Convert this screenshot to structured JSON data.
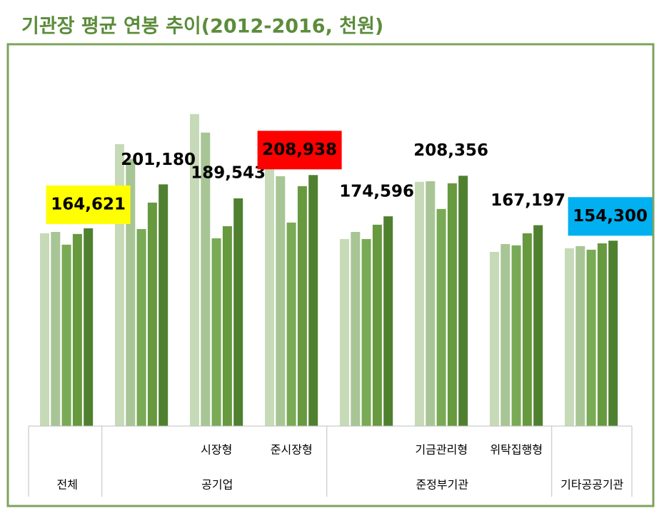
{
  "chart_data": {
    "type": "bar",
    "title": "기관장 평균 연봉 추이(2012-2016, 천원)",
    "categories": [
      null,
      null,
      "시장형",
      "준시장형",
      null,
      "기금관리형",
      "위탁집행형",
      null
    ],
    "groups": [
      {
        "label": "전체",
        "from": 0,
        "to": 0
      },
      {
        "label": "공기업",
        "from": 1,
        "to": 3
      },
      {
        "label": "준정부기관",
        "from": 4,
        "to": 6
      },
      {
        "label": "기타공공기관",
        "from": 7,
        "to": 7
      }
    ],
    "ylim": [
      0,
      300000
    ],
    "series": [
      {
        "color": "#c6dab8",
        "values": [
          160500,
          234700,
          259700,
          215100,
          155700,
          203300,
          145000,
          148000
        ]
      },
      {
        "color": "#a8c596",
        "values": [
          161600,
          222300,
          244300,
          208000,
          161600,
          203800,
          151500,
          149800
        ]
      },
      {
        "color": "#79aa55",
        "values": [
          151000,
          164000,
          156300,
          169400,
          155700,
          180700,
          150400,
          146800
        ]
      },
      {
        "color": "#67993f",
        "values": [
          159900,
          186000,
          166400,
          199700,
          167600,
          202100,
          160500,
          152100
        ]
      },
      {
        "color": "#4f8030",
        "values": [
          164621,
          201180,
          189543,
          208938,
          174596,
          208356,
          167197,
          154300
        ],
        "value_labels": [
          "164,621",
          "201,180",
          "189,543",
          "208,938",
          "174,596",
          "208,356",
          "167,197",
          "154,300"
        ],
        "label_boxes": [
          "#ffff00",
          null,
          null,
          "#ff0000",
          null,
          null,
          null,
          "#00b0f0"
        ]
      }
    ]
  }
}
